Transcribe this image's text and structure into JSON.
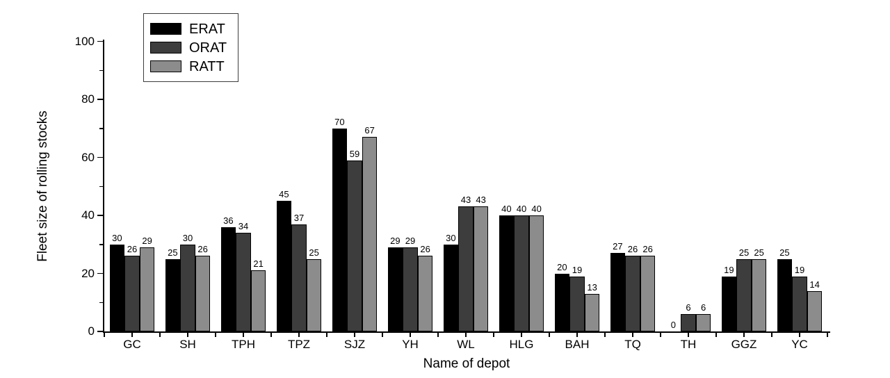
{
  "chart_data": {
    "type": "bar",
    "categories": [
      "GC",
      "SH",
      "TPH",
      "TPZ",
      "SJZ",
      "YH",
      "WL",
      "HLG",
      "BAH",
      "TQ",
      "TH",
      "GGZ",
      "YC"
    ],
    "series": [
      {
        "name": "ERAT",
        "color": "#000000",
        "values": [
          30,
          25,
          36,
          45,
          70,
          29,
          30,
          40,
          20,
          27,
          0,
          19,
          25
        ]
      },
      {
        "name": "ORAT",
        "color": "#3d3d3d",
        "values": [
          26,
          30,
          34,
          37,
          59,
          29,
          43,
          40,
          19,
          26,
          6,
          25,
          19
        ]
      },
      {
        "name": "RATT",
        "color": "#8c8c8c",
        "values": [
          29,
          26,
          21,
          25,
          67,
          26,
          43,
          40,
          13,
          26,
          6,
          25,
          14
        ]
      }
    ],
    "title": "",
    "xlabel": "Name of depot",
    "ylabel": "Fleet size of rolling stocks",
    "ylim": [
      0,
      100
    ],
    "yticks_major": [
      0,
      20,
      40,
      60,
      80,
      100
    ],
    "yticks_minor": [
      10,
      30,
      50,
      70,
      90
    ],
    "legend_position": "top-left",
    "bar_value_labels": true,
    "grid": false,
    "background": "#ffffff"
  }
}
